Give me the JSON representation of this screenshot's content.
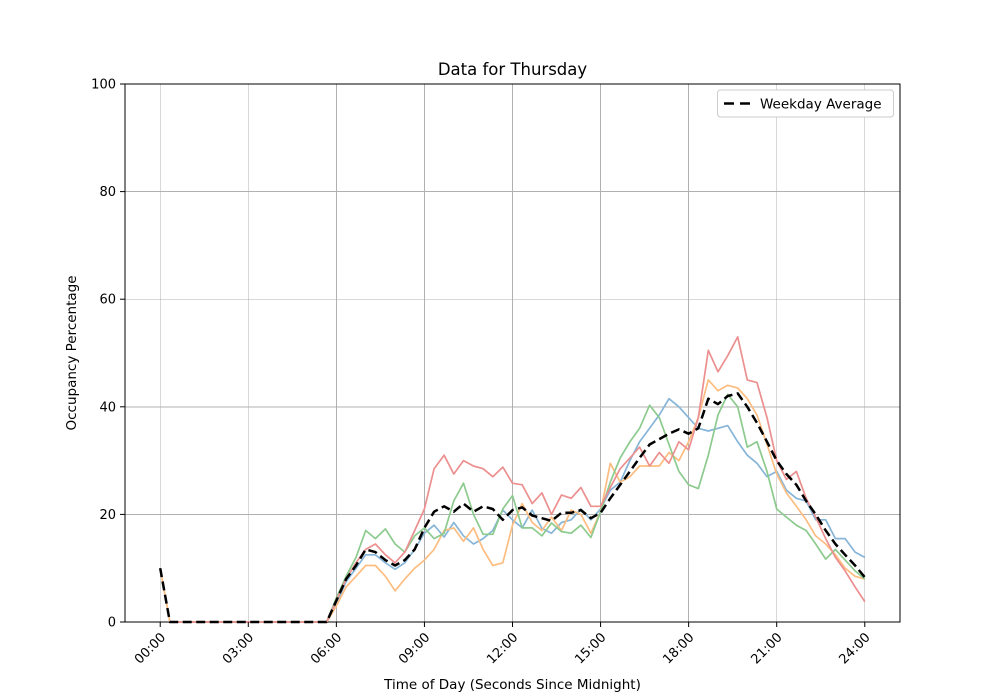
{
  "chart_data": {
    "type": "line",
    "title": "Data for Thursday",
    "xlabel": "Time of Day (Seconds Since Midnight)",
    "ylabel": "Occupancy Percentage",
    "grid": true,
    "grid_color": "#b0b0b0",
    "background_color": "#ffffff",
    "ylim": [
      0,
      100
    ],
    "xlim_hours": [
      -1.2,
      25.2
    ],
    "y_ticks": [
      0,
      20,
      40,
      60,
      80,
      100
    ],
    "x_ticks_hours": [
      0,
      3,
      6,
      9,
      12,
      15,
      18,
      21,
      24
    ],
    "x_tick_labels": [
      "00:00",
      "03:00",
      "06:00",
      "09:00",
      "12:00",
      "15:00",
      "18:00",
      "21:00",
      "24:00"
    ],
    "legend_entries": [
      "Weekday Average"
    ],
    "legend_position": "upper right",
    "x_hours": [
      0,
      0.33,
      0.67,
      1,
      1.33,
      1.67,
      2,
      2.33,
      2.67,
      3,
      3.33,
      3.67,
      4,
      4.33,
      4.67,
      5,
      5.33,
      5.67,
      6,
      6.33,
      6.67,
      7,
      7.33,
      7.67,
      8,
      8.33,
      8.67,
      9,
      9.33,
      9.67,
      10,
      10.33,
      10.67,
      11,
      11.33,
      11.67,
      12,
      12.33,
      12.67,
      13,
      13.33,
      13.67,
      14,
      14.33,
      14.67,
      15,
      15.33,
      15.67,
      16,
      16.33,
      16.67,
      17,
      17.33,
      17.67,
      18,
      18.33,
      18.67,
      19,
      19.33,
      19.67,
      20,
      20.33,
      20.67,
      21,
      21.33,
      21.67,
      22,
      22.33,
      22.67,
      23,
      23.33,
      23.67,
      24
    ],
    "series": [
      {
        "name": "weekday-blue",
        "color": "#86b5d8",
        "line_width": 1.7,
        "dashed": false,
        "values": [
          null,
          0,
          0,
          0,
          0,
          0,
          0,
          0,
          0,
          0,
          0,
          0,
          0,
          0,
          0,
          0,
          0,
          0,
          3.5,
          7.5,
          10,
          12.5,
          12.5,
          11,
          9.8,
          11,
          13.5,
          16.5,
          18,
          15.8,
          18.5,
          16,
          14.5,
          15.5,
          17,
          20.8,
          19,
          17.5,
          20.8,
          17.4,
          16.5,
          18.5,
          19,
          21,
          19,
          21,
          24.5,
          26,
          30,
          33.5,
          36,
          38.5,
          41.5,
          40,
          38,
          36,
          35.5,
          36,
          36.5,
          33.5,
          31,
          29.5,
          27,
          28,
          24.5,
          23,
          22.5,
          19,
          19,
          15.5,
          15.5,
          13,
          12
        ]
      },
      {
        "name": "weekday-orange",
        "color": "#fdbd80",
        "line_width": 1.7,
        "dashed": false,
        "values": [
          10,
          0,
          0,
          0,
          0,
          0,
          0,
          0,
          0,
          0,
          0,
          0,
          0,
          0,
          0,
          0,
          0,
          0,
          3,
          6.5,
          8.5,
          10.5,
          10.5,
          8.5,
          5.8,
          8,
          10,
          11.5,
          13.5,
          17,
          17.5,
          15,
          17.5,
          13.5,
          10.5,
          11,
          18,
          22,
          18.5,
          17,
          19.5,
          17,
          20.8,
          20,
          16.5,
          20.5,
          29.5,
          26,
          27,
          29,
          29,
          29,
          31.5,
          30,
          33.5,
          38,
          45,
          43,
          44,
          43.5,
          41.5,
          38.5,
          33,
          27.5,
          24,
          21.5,
          19,
          16,
          14.5,
          12.5,
          10,
          8.5,
          8
        ]
      },
      {
        "name": "weekday-green",
        "color": "#8cca8e",
        "line_width": 1.7,
        "dashed": false,
        "values": [
          null,
          0,
          0,
          0,
          0,
          0,
          0,
          0,
          0,
          0,
          0,
          0,
          0,
          0,
          0,
          0,
          0,
          0,
          4.5,
          8.5,
          12,
          17,
          15.5,
          17.3,
          14.5,
          13,
          16,
          17.5,
          15.5,
          16.5,
          22.5,
          25.8,
          20,
          16.3,
          16.3,
          21,
          23.5,
          17.5,
          17.5,
          16,
          18.4,
          16.8,
          16.5,
          18,
          15.7,
          20.5,
          26,
          30.5,
          33.5,
          36,
          40.3,
          38,
          33,
          28,
          25.5,
          24.8,
          31,
          38.5,
          42.3,
          40,
          32.5,
          33.5,
          28,
          21,
          19.5,
          18,
          17,
          14.5,
          11.7,
          13.5,
          11.5,
          9.5,
          8
        ]
      },
      {
        "name": "weekday-red",
        "color": "#ec8f8f",
        "line_width": 1.7,
        "dashed": false,
        "values": [
          null,
          0,
          0,
          0,
          0,
          0,
          0,
          0,
          0,
          0,
          0,
          0,
          0,
          0,
          0,
          0,
          0,
          0,
          4,
          8,
          11,
          13.5,
          14.5,
          12.5,
          11,
          13,
          17,
          21,
          28.5,
          31,
          27.5,
          30,
          29,
          28.5,
          27,
          28.8,
          25.8,
          25.5,
          22,
          24,
          20,
          23.6,
          23,
          25,
          21.5,
          21.5,
          25,
          28.5,
          30.5,
          32.5,
          29,
          31.5,
          29.5,
          33.5,
          32,
          38,
          50.5,
          46.5,
          49.5,
          53,
          45,
          44.5,
          38,
          30,
          26.5,
          28,
          23,
          19.5,
          15.5,
          12,
          9.5,
          6.5,
          3.8
        ]
      },
      {
        "name": "weekday-average",
        "color": "#000000",
        "line_width": 2.5,
        "dashed": true,
        "values": [
          10,
          0,
          0,
          0,
          0,
          0,
          0,
          0,
          0,
          0,
          0,
          0,
          0,
          0,
          0,
          0,
          0,
          0,
          4,
          8,
          10.5,
          13.5,
          13,
          11.5,
          10.5,
          11.5,
          13.5,
          17.5,
          20.5,
          21.5,
          20.5,
          22,
          20.5,
          21.5,
          21,
          19,
          20.8,
          21.3,
          19.8,
          19.3,
          18.8,
          20.3,
          20.3,
          20.8,
          19.3,
          20.3,
          23,
          25.5,
          28,
          30.5,
          33,
          34,
          35,
          35.8,
          35,
          36,
          41.5,
          40.5,
          42,
          42.5,
          40,
          37,
          33.5,
          30,
          27.5,
          25.5,
          22.5,
          20,
          17,
          14.5,
          12.5,
          10.5,
          8.3
        ]
      }
    ]
  }
}
